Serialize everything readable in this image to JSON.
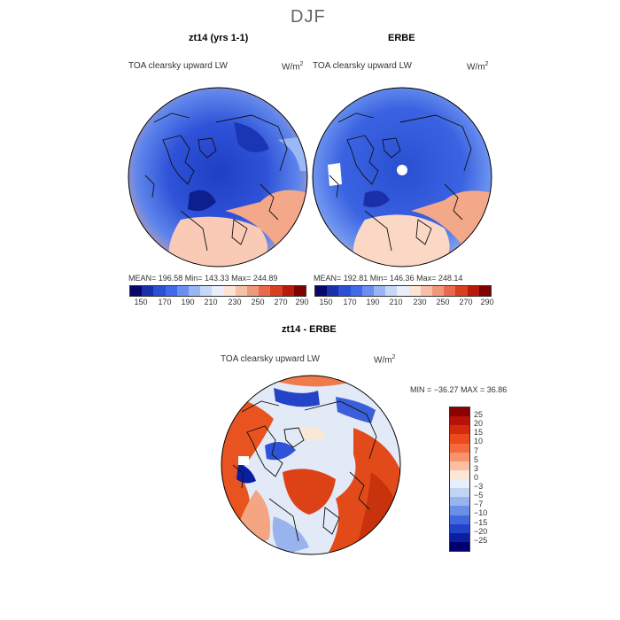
{
  "figure": {
    "title": "DJF"
  },
  "panels": [
    {
      "name": "model-panel",
      "title": "zt14 (yrs 1-1)",
      "field": "TOA clearsky upward LW",
      "units": "W/m",
      "units_power": "2",
      "stats": "MEAN= 196.58   Min= 143.33   Max= 244.89"
    },
    {
      "name": "obs-panel",
      "title": "ERBE",
      "field": "TOA clearsky upward LW",
      "units": "W/m",
      "units_power": "2",
      "stats": "MEAN= 192.81   Min= 146.36   Max= 248.14"
    },
    {
      "name": "diff-panel",
      "title": "zt14 - ERBE",
      "field": "TOA clearsky upward LW",
      "units": "W/m",
      "units_power": "2",
      "stats": "MIN = −36.27  MAX =  36.86"
    }
  ],
  "colorbar_abs": {
    "labels": [
      "150",
      "170",
      "190",
      "210",
      "230",
      "250",
      "270",
      "290"
    ],
    "colors": [
      "#08086b",
      "#1a2fa8",
      "#2a50d6",
      "#3f6be8",
      "#6a8ff0",
      "#98b6f5",
      "#c6d8f8",
      "#eaeef8",
      "#fbe4d4",
      "#f6c0a4",
      "#f0987a",
      "#e8694e",
      "#d9401f",
      "#b81b0c",
      "#7e0202"
    ]
  },
  "colorbar_diff": {
    "labels": [
      "25",
      "20",
      "15",
      "10",
      "7",
      "5",
      "3",
      "0",
      "−3",
      "−5",
      "−7",
      "−10",
      "−15",
      "−20",
      "−25"
    ],
    "colors": [
      "#8b0000",
      "#b5120a",
      "#d42a0e",
      "#ec4a1c",
      "#f36a40",
      "#f7946e",
      "#fbbf9f",
      "#fbe7d8",
      "#e8eefa",
      "#c2d4f5",
      "#98b3ee",
      "#6b8fe6",
      "#4068de",
      "#2242c8",
      "#0a1fa0",
      "#02006e"
    ]
  }
}
